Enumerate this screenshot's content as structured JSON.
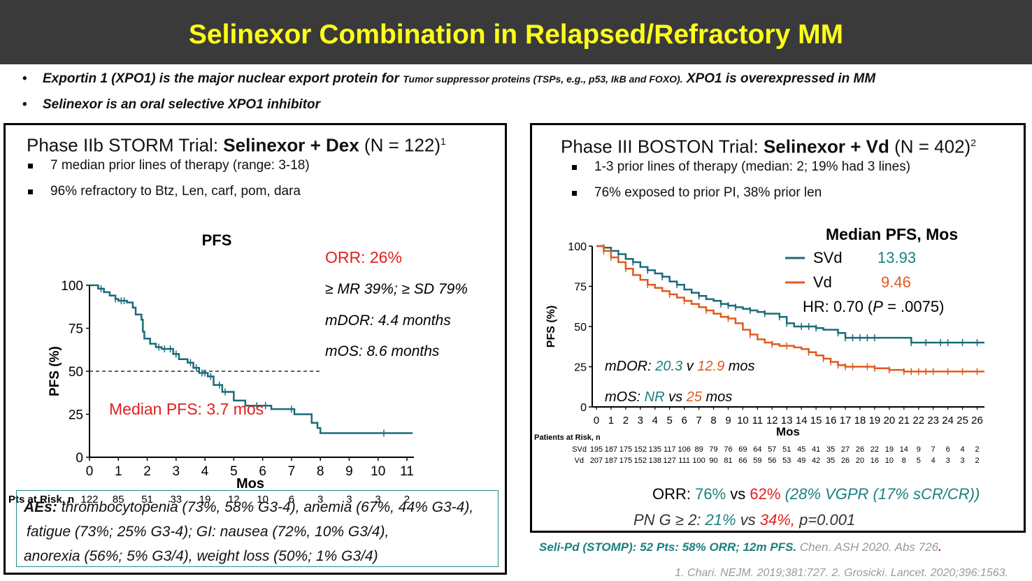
{
  "colors": {
    "title_text": "#ffff1a",
    "title_bg": "#3a3a3a",
    "svd": "#1a6a7a",
    "vd": "#e05a1e",
    "red": "#e02020",
    "teal_text": "#1a8080"
  },
  "slide": {
    "title": "Selinexor Combination in Relapsed/Refractory MM"
  },
  "bullets": {
    "b1_part1": "Exportin 1 (XPO1) is the major nuclear export protein for",
    "b1_small": "Tumor suppressor proteins (TSPs, e.g., p53, IkB and FOXO).",
    "b1_part2": "XPO1 is overexpressed in MM",
    "b2": "Selinexor is an oral selective XPO1 inhibitor"
  },
  "left": {
    "title_pre": "Phase IIb STORM Trial:",
    "title_bold": "Selinexor + Dex",
    "title_post": "(N = 122)",
    "title_sup": "1",
    "bullet1": "7 median prior lines of therapy (range: 3-18)",
    "bullet2": "96% refractory to Btz, Len, carf, pom, dara",
    "orr": "ORR: 26%",
    "mr_sd": "≥ MR 39%; ≥ SD 79%",
    "mdor": "mDOR: 4.4 months",
    "mos": "mOS: 8.6 months",
    "median_pfs": "Median PFS: 3.7 mos",
    "pts_label": "Pts at Risk, n",
    "pts_values": [
      "122",
      "85",
      "51",
      "33",
      "19",
      "12",
      "10",
      "6",
      "3",
      "3",
      "3",
      "2"
    ],
    "ae_label": "AEs:",
    "ae_line1": "thrombocytopenia (73%, 58% G3-4), anemia (67%, 44% G3-4),",
    "ae_line2": "fatigue (73%; 25% G3-4); GI: nausea (72%, 10% G3/4),",
    "ae_line3": "anorexia (56%; 5% G3/4), weight loss (50%; 1% G3/4)"
  },
  "right": {
    "title_pre": "Phase III BOSTON Trial:",
    "title_bold": "Selinexor + Vd",
    "title_post": "(N = 402)",
    "title_sup": "2",
    "bullet1": "1-3 prior lines of therapy (median: 2; 19% had 3 lines)",
    "bullet2": "76% exposed to prior PI, 38% prior len",
    "median_head": "Median PFS, Mos",
    "svd_label": "SVd",
    "svd_val": "13.93",
    "vd_label": "Vd",
    "vd_val": "9.46",
    "hr_pre": "HR: 0.70 (",
    "hr_p": "P",
    "hr_post": " = .0075)",
    "mdor_pre": "mDOR:",
    "mdor_svd": "20.3",
    "mdor_v": "v",
    "mdor_vd": "12.9",
    "mdor_post": "mos",
    "mos_pre": "mOS:",
    "mos_svd": "NR",
    "mos_vs": "vs",
    "mos_vd": "25",
    "mos_post": "mos",
    "pts_label": "Patients at Risk, n",
    "svd_row_label": "SVd",
    "vd_row_label": "Vd",
    "svd_risk": [
      "195",
      "187",
      "175",
      "152",
      "135",
      "117",
      "106",
      "89",
      "79",
      "76",
      "69",
      "64",
      "57",
      "51",
      "45",
      "41",
      "35",
      "27",
      "26",
      "22",
      "19",
      "14",
      "9",
      "7",
      "6",
      "4",
      "2"
    ],
    "vd_risk": [
      "207",
      "187",
      "175",
      "152",
      "138",
      "127",
      "111",
      "100",
      "90",
      "81",
      "66",
      "59",
      "56",
      "53",
      "49",
      "42",
      "35",
      "26",
      "20",
      "16",
      "10",
      "8",
      "5",
      "4",
      "3",
      "3",
      "2"
    ],
    "orr_pre": "ORR:",
    "orr_svd": "76%",
    "orr_vs": "vs",
    "orr_vd": "62%",
    "orr_vgpr": "(28% VGPR (17% sCR/CR))",
    "pn_pre": "PN G ≥ 2:",
    "pn_svd": "21%",
    "pn_vs": "vs",
    "pn_vd": "34%,",
    "pn_p": "p=0.001"
  },
  "footer": {
    "seli_bold": "Seli-Pd (STOMP):",
    "seli_mid": "52 Pts:  58% ORR;  12m PFS.",
    "seli_ref": "Chen. ASH 2020. Abs 726",
    "seli_dot": ".",
    "refs": "1. Chari. NEJM. 2019;381:727. 2. Grosicki. Lancet. 2020;396:1563."
  },
  "chart_data": [
    {
      "type": "line",
      "title": "PFS",
      "xlabel": "Mos",
      "ylabel": "PFS (%)",
      "xlim": [
        0,
        11
      ],
      "ylim": [
        0,
        100
      ],
      "xticks": [
        0,
        1,
        2,
        3,
        4,
        5,
        6,
        7,
        8,
        9,
        10,
        11
      ],
      "yticks": [
        0,
        25,
        50,
        75,
        100
      ],
      "reference_line_y": 50,
      "series": [
        {
          "name": "Selinexor + Dex",
          "x": [
            0,
            0.3,
            0.5,
            0.7,
            0.9,
            1.0,
            1.3,
            1.5,
            1.6,
            1.8,
            1.85,
            1.9,
            2.1,
            2.3,
            2.5,
            2.9,
            3.1,
            3.4,
            3.6,
            3.8,
            4.1,
            4.3,
            4.6,
            5.0,
            5.4,
            6.3,
            7.1,
            7.7,
            7.9,
            8.0,
            11.2
          ],
          "y": [
            100,
            98,
            96,
            94,
            92,
            91,
            90,
            87,
            83,
            80,
            73,
            69,
            66,
            64,
            63,
            60,
            57,
            55,
            52,
            49,
            47,
            42,
            38,
            33,
            30,
            28,
            25,
            20,
            17,
            14,
            14
          ],
          "censor_x": [
            0.4,
            0.9,
            1.1,
            1.2,
            2.4,
            2.6,
            2.8,
            3.0,
            3.5,
            3.7,
            3.9,
            4.0,
            4.2,
            4.5,
            4.7,
            5.8,
            6.1,
            7.0,
            10.2
          ]
        }
      ]
    },
    {
      "type": "line",
      "title": "Median PFS, Mos",
      "xlabel": "Mos",
      "ylabel": "PFS (%)",
      "xlim": [
        0,
        26.5
      ],
      "ylim": [
        0,
        100
      ],
      "xticks": [
        0,
        1,
        2,
        3,
        4,
        5,
        6,
        7,
        8,
        9,
        10,
        11,
        12,
        13,
        14,
        15,
        16,
        17,
        18,
        19,
        20,
        21,
        22,
        23,
        24,
        25,
        26
      ],
      "yticks": [
        0,
        25,
        50,
        75,
        100
      ],
      "series": [
        {
          "name": "SVd",
          "median": 13.93,
          "x": [
            0,
            0.5,
            1,
            1.5,
            2,
            2.5,
            3,
            3.5,
            4,
            4.5,
            5,
            5.5,
            6,
            6.5,
            7,
            7.5,
            8,
            8.5,
            9,
            9.5,
            10,
            10.5,
            11,
            11.5,
            12,
            12.5,
            13,
            13.5,
            14,
            14.5,
            15,
            15.5,
            16,
            16.5,
            17,
            18,
            19,
            20,
            21,
            21.5,
            22,
            23,
            24,
            25,
            26.5
          ],
          "y": [
            100,
            99,
            97,
            95,
            92,
            90,
            87,
            85,
            83,
            81,
            78,
            76,
            73,
            71,
            69,
            67,
            66,
            64,
            63,
            62,
            61,
            60,
            59,
            58,
            58,
            56,
            52,
            50,
            50,
            50,
            49,
            48,
            48,
            46,
            43,
            43,
            43,
            43,
            43,
            40,
            40,
            40,
            40,
            40,
            40
          ],
          "censor_x": [
            0.5,
            1,
            1.5,
            2.5,
            3.5,
            4.5,
            5.5,
            7,
            8.5,
            9,
            9.5,
            10.5,
            11.5,
            12.5,
            13,
            14,
            14.5,
            15,
            16.5,
            17,
            17.5,
            18,
            18.5,
            19,
            21.5,
            22.5,
            23.5,
            24,
            25,
            26
          ]
        },
        {
          "name": "Vd",
          "median": 9.46,
          "x": [
            0,
            0.5,
            1,
            1.5,
            2,
            2.5,
            3,
            3.5,
            4,
            4.5,
            5,
            5.5,
            6,
            6.5,
            7,
            7.5,
            8,
            8.5,
            9,
            9.5,
            10,
            10.5,
            11,
            11.5,
            12,
            12.5,
            13,
            13.5,
            14,
            14.5,
            15,
            15.5,
            16,
            16.5,
            17,
            18,
            19,
            20,
            21,
            22,
            23,
            26.5
          ],
          "y": [
            100,
            97,
            93,
            90,
            86,
            82,
            79,
            76,
            74,
            72,
            70,
            68,
            66,
            64,
            62,
            60,
            58,
            56,
            55,
            52,
            48,
            45,
            42,
            40,
            39,
            38,
            38,
            37,
            36,
            34,
            32,
            30,
            28,
            26,
            25,
            25,
            24,
            23,
            22,
            22,
            22,
            22
          ],
          "censor_x": [
            0.5,
            1,
            2,
            3.5,
            5,
            6,
            7.5,
            9,
            10.5,
            12,
            13,
            14.5,
            15.5,
            16,
            16.5,
            17,
            17.5,
            18.5,
            19,
            20,
            21,
            21.5,
            22,
            22.5,
            23,
            24,
            25,
            26
          ]
        }
      ]
    }
  ]
}
